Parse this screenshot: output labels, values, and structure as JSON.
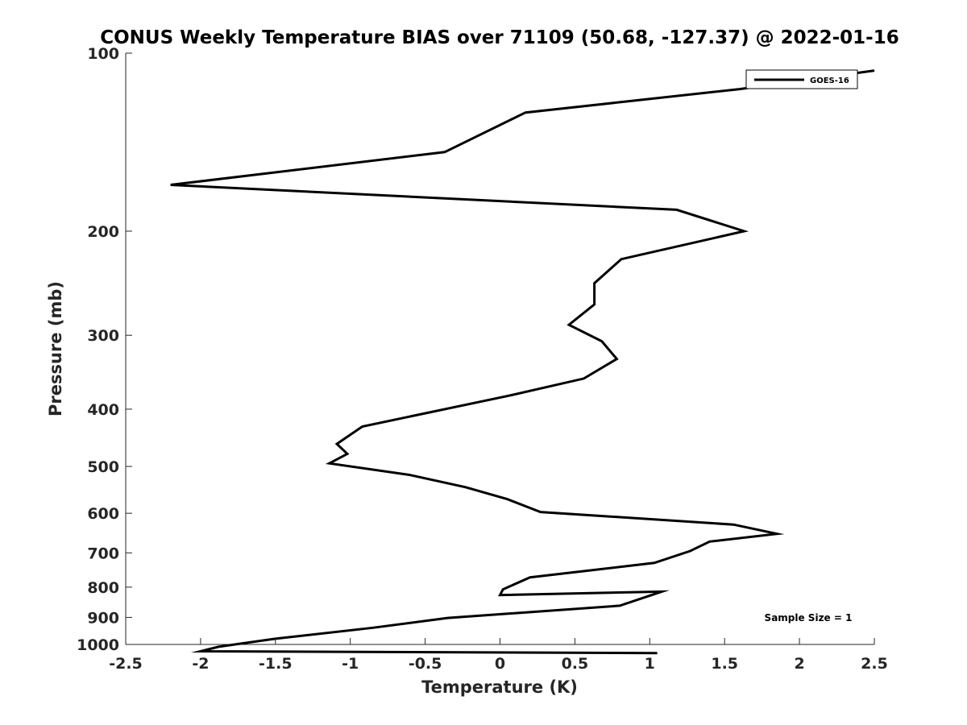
{
  "chart_data": {
    "type": "line",
    "title": "CONUS Weekly Temperature BIAS over 71109 (50.68, -127.37) @ 2022-01-16",
    "xlabel": "Temperature (K)",
    "ylabel": "Pressure (mb)",
    "xlim": [
      -2.5,
      2.5
    ],
    "ylim": [
      1000,
      100
    ],
    "yscale": "log",
    "y_reversed": true,
    "grid": false,
    "legend_position": "top-right",
    "x_ticks": [
      -2.5,
      -2,
      -1.5,
      -1,
      -0.5,
      0,
      0.5,
      1,
      1.5,
      2,
      2.5
    ],
    "x_tick_labels": [
      "-2.5",
      "-2",
      "-1.5",
      "-1",
      "-0.5",
      "0",
      "0.5",
      "1",
      "1.5",
      "2",
      "2.5"
    ],
    "y_ticks": [
      100,
      200,
      300,
      400,
      500,
      600,
      700,
      800,
      900,
      1000
    ],
    "y_tick_labels": [
      "100",
      "200",
      "300",
      "400",
      "500",
      "600",
      "700",
      "800",
      "900",
      "1000"
    ],
    "annotation": "Sample Size = 1",
    "series": [
      {
        "name": "GOES-16",
        "color": "#000000",
        "x": [
          2.5,
          1.6,
          0.17,
          -0.37,
          -2.2,
          1.18,
          1.63,
          0.81,
          0.63,
          0.63,
          0.46,
          0.68,
          0.78,
          0.56,
          0.05,
          -0.45,
          -0.92,
          -1.09,
          -1.02,
          -1.14,
          -0.6,
          -0.23,
          0.05,
          0.27,
          1.56,
          1.85,
          1.4,
          1.27,
          1.03,
          0.2,
          0.02,
          0.0,
          1.08,
          0.8,
          -0.35,
          -0.85,
          -1.5,
          -1.88,
          -2.0,
          1.05
        ],
        "y": [
          107,
          115,
          126,
          147,
          167,
          184,
          200,
          223,
          245,
          266,
          288,
          307,
          329,
          355,
          380,
          404,
          428,
          458,
          476,
          494,
          517,
          542,
          568,
          597,
          627,
          650,
          670,
          695,
          728,
          770,
          807,
          825,
          814,
          860,
          902,
          937,
          978,
          1009,
          1027,
          1034
        ]
      }
    ]
  }
}
